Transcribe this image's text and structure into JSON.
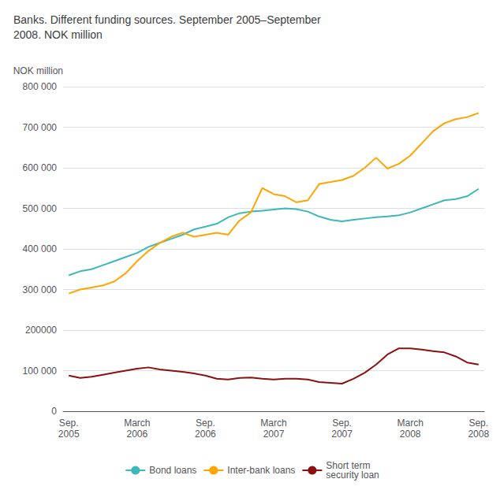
{
  "chart_data": {
    "type": "line",
    "title": "Banks. Different funding sources. September 2005–September\n2008. NOK million",
    "ylabel": "NOK million",
    "categories": [
      "Sep.\n2005",
      null,
      null,
      null,
      null,
      null,
      "March\n2006",
      null,
      null,
      null,
      null,
      null,
      "Sep.\n2006",
      null,
      null,
      null,
      null,
      null,
      "March\n2007",
      null,
      null,
      null,
      null,
      null,
      "Sep.\n2007",
      null,
      null,
      null,
      null,
      null,
      "March\n2008",
      null,
      null,
      null,
      null,
      null,
      "Sep.\n2008"
    ],
    "series": [
      {
        "name": "Bond loans",
        "color": "#3cb8b8",
        "values": [
          335000,
          345000,
          350000,
          360000,
          370000,
          380000,
          390000,
          405000,
          415000,
          425000,
          435000,
          448000,
          455000,
          462000,
          478000,
          488000,
          492000,
          494000,
          497000,
          500000,
          498000,
          492000,
          480000,
          472000,
          468000,
          472000,
          475000,
          478000,
          480000,
          483000,
          490000,
          500000,
          510000,
          520000,
          523000,
          530000,
          548000
        ]
      },
      {
        "name": "Inter-bank loans",
        "color": "#FFA500",
        "values": [
          290000,
          300000,
          305000,
          310000,
          320000,
          340000,
          370000,
          395000,
          415000,
          430000,
          440000,
          430000,
          435000,
          440000,
          435000,
          470000,
          490000,
          550000,
          535000,
          530000,
          515000,
          520000,
          560000,
          565000,
          570000,
          580000,
          600000,
          625000,
          598000,
          610000,
          630000,
          660000,
          690000,
          710000,
          720000,
          725000,
          735000
        ]
      },
      {
        "name": "Short term\nsecurity loan",
        "color": "#8B1010",
        "values": [
          88000,
          82000,
          85000,
          90000,
          95000,
          100000,
          105000,
          108000,
          103000,
          100000,
          97000,
          93000,
          88000,
          80000,
          78000,
          82000,
          83000,
          80000,
          78000,
          80000,
          80000,
          78000,
          72000,
          70000,
          68000,
          80000,
          95000,
          115000,
          140000,
          155000,
          155000,
          152000,
          148000,
          145000,
          135000,
          120000,
          115000
        ]
      }
    ],
    "ylim": [
      0,
      800000
    ],
    "yticks": [
      0,
      {
        "value": 100000,
        "label": "100 000"
      },
      200000,
      {
        "value": 300000,
        "label": "300 000"
      },
      {
        "value": 400000,
        "label": "400 000"
      },
      {
        "value": 500000,
        "label": "500 000"
      },
      {
        "value": 600000,
        "label": "600 000"
      },
      {
        "value": 700000,
        "label": "700 000"
      },
      {
        "value": 800000,
        "label": "800 000"
      }
    ],
    "grid": true,
    "legend": "bottom"
  }
}
